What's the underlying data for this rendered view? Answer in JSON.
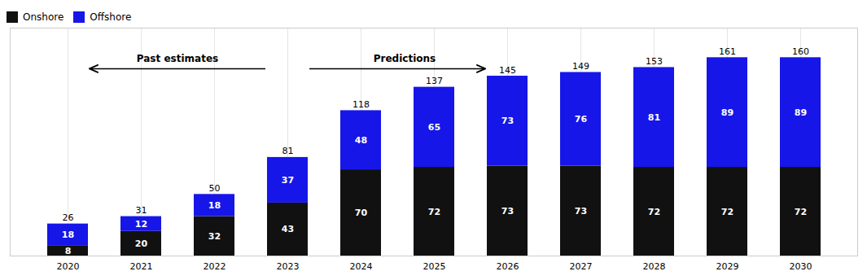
{
  "chart_data": {
    "type": "bar",
    "stacked": true,
    "categories": [
      "2020",
      "2021",
      "2022",
      "2023",
      "2024",
      "2025",
      "2026",
      "2027",
      "2028",
      "2029",
      "2030"
    ],
    "series": [
      {
        "name": "Onshore",
        "color": "#111111",
        "values": [
          8,
          20,
          32,
          43,
          70,
          72,
          73,
          73,
          72,
          72,
          72
        ]
      },
      {
        "name": "Offshore",
        "color": "#1616e8",
        "values": [
          18,
          12,
          18,
          37,
          48,
          65,
          73,
          76,
          81,
          89,
          89
        ]
      }
    ],
    "totals": [
      26,
      31,
      50,
      81,
      118,
      137,
      145,
      149,
      153,
      161,
      160
    ],
    "ylim": [
      0,
      185
    ],
    "grid": true,
    "legend": "upper left",
    "data_labels": true,
    "tick_labels": "x",
    "annotations": [
      "Past estimates",
      "Predictions"
    ]
  }
}
